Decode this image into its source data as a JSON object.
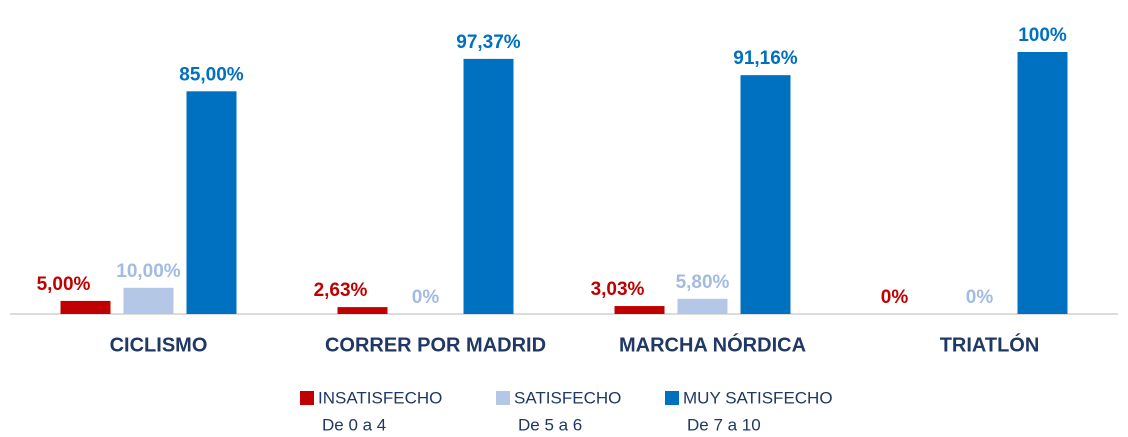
{
  "chart_data": {
    "type": "bar",
    "categories": [
      "CICLISMO",
      "CORRER POR MADRID",
      "MARCHA NÓRDICA",
      "TRIATLÓN"
    ],
    "series": [
      {
        "name": "INSATISFECHO",
        "range": "De 0 a 4",
        "color": "#c00000",
        "label_color": "#c00000",
        "values": [
          5,
          2.63,
          3.03,
          0
        ],
        "value_labels": [
          "5,00%",
          "2,63%",
          "3,03%",
          "0%"
        ]
      },
      {
        "name": "SATISFECHO",
        "range": "De 5 a 6",
        "color": "#b4c7e7",
        "label_color": "#a3bbe2",
        "values": [
          10,
          0,
          5.8,
          0
        ],
        "value_labels": [
          "10,00%",
          "0%",
          "5,80%",
          "0%"
        ]
      },
      {
        "name": "MUY SATISFECHO",
        "range": "De 7 a 10",
        "color": "#0070c0",
        "label_color": "#0070c0",
        "values": [
          85,
          97.37,
          91.16,
          100
        ],
        "value_labels": [
          "85,00%",
          "97,37%",
          "91,16%",
          "100%"
        ]
      }
    ],
    "ylim": [
      0,
      100
    ]
  }
}
